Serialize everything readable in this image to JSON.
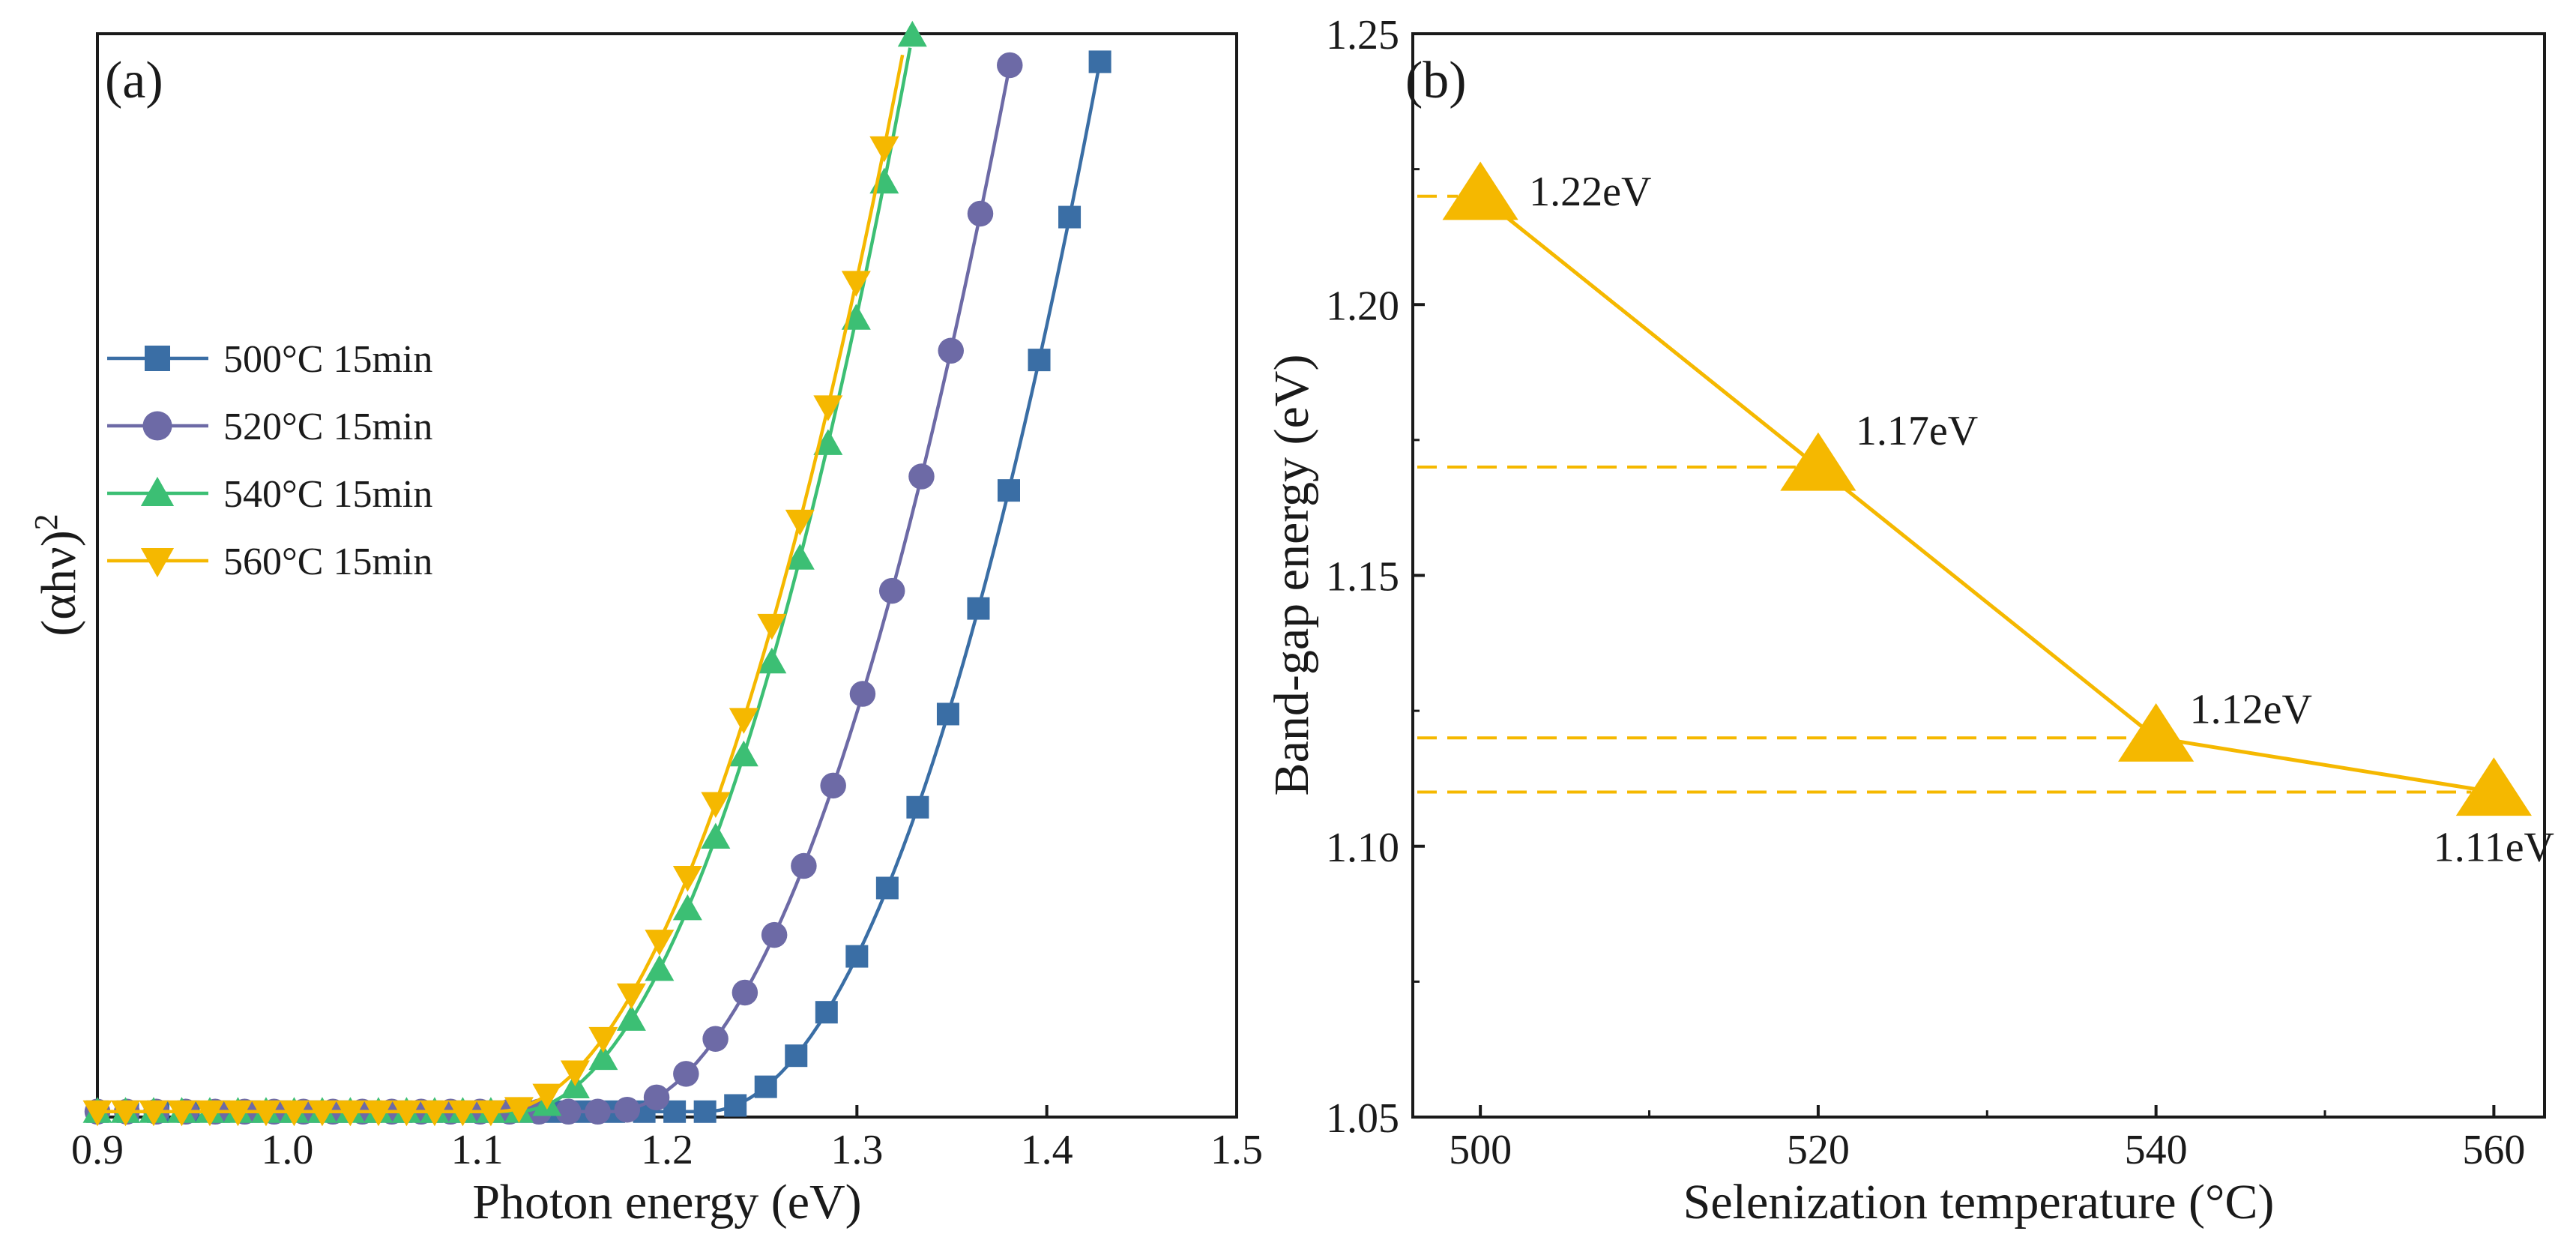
{
  "chart_data": [
    {
      "type": "line",
      "panel_label": "(a)",
      "xlabel": "Photon energy (eV)",
      "ylabel_base": "(αhν)",
      "ylabel_sup": "2",
      "xlim": [
        0.9,
        1.5
      ],
      "ylim": [
        0,
        1
      ],
      "xticks": [
        "0.9",
        "1.0",
        "1.1",
        "1.2",
        "1.3",
        "1.4",
        "1.5"
      ],
      "legend_position": "middle-left",
      "model": "y = k * max(0, x - Eg)^2 + 0.005",
      "series": [
        {
          "name": "500°C 15min",
          "color": "#3a6ea5",
          "marker": "square",
          "band_gap": 1.22,
          "k": 22.4,
          "x_start": 0.9,
          "x_end": 1.435,
          "x_step": 0.016
        },
        {
          "name": "520°C 15min",
          "color": "#6d6aa6",
          "marker": "circle",
          "band_gap": 1.17,
          "k": 21.8,
          "x_start": 0.9,
          "x_end": 1.384,
          "x_step": 0.0155
        },
        {
          "name": "540°C 15min",
          "color": "#3cbf74",
          "marker": "triangle-up",
          "band_gap": 1.12,
          "k": 22.7,
          "x_start": 0.9,
          "x_end": 1.33,
          "x_step": 0.0148
        },
        {
          "name": "560°C 15min",
          "color": "#f5b800",
          "marker": "triangle-down",
          "band_gap": 1.11,
          "k": 21.3,
          "x_start": 0.9,
          "x_end": 1.325,
          "x_step": 0.0148
        }
      ]
    },
    {
      "type": "line",
      "panel_label": "(b)",
      "xlabel": "Selenization temperature (°C)",
      "ylabel": "Band-gap energy (eV)",
      "xlim": [
        496,
        563
      ],
      "ylim": [
        1.05,
        1.25
      ],
      "xticks": [
        500,
        520,
        540,
        560
      ],
      "yticks": [
        "1.05",
        "1.10",
        "1.15",
        "1.20",
        "1.25"
      ],
      "color": "#f5b800",
      "x": [
        500,
        520,
        540,
        560
      ],
      "y": [
        1.22,
        1.17,
        1.12,
        1.11
      ],
      "point_labels": [
        "1.22eV",
        "1.17eV",
        "1.12eV",
        "1.11eV"
      ]
    }
  ]
}
